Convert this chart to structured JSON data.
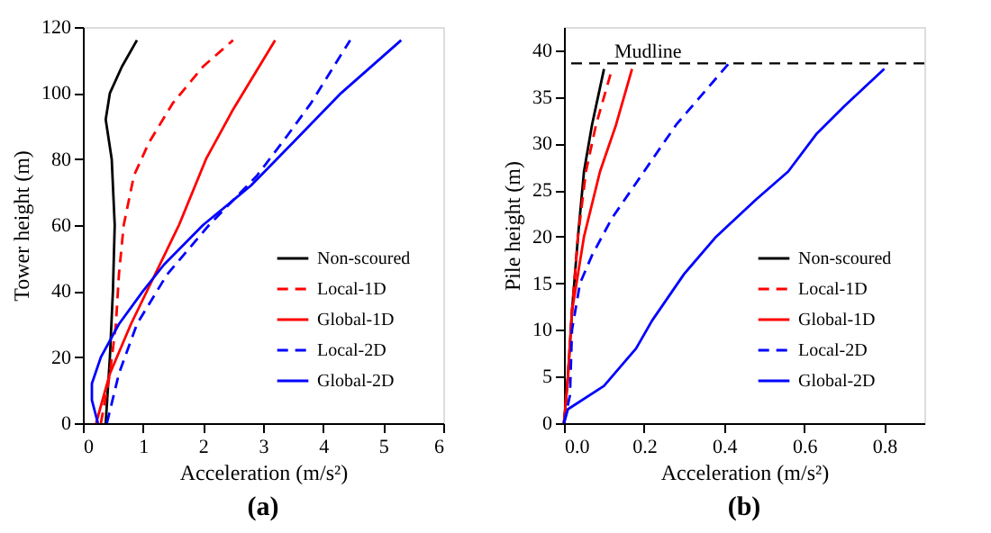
{
  "chart_data": [
    {
      "type": "line",
      "title": "(a)",
      "xlabel": "Acceleration (m/s²)",
      "ylabel": "Tower height (m)",
      "xlim": [
        0,
        6
      ],
      "xticks": [
        0,
        1,
        2,
        3,
        4,
        5,
        6
      ],
      "ylim": [
        0,
        120
      ],
      "yticks": [
        0,
        20,
        40,
        60,
        80,
        100,
        120
      ],
      "grid": false,
      "legend": "bottom right",
      "series": [
        {
          "name": "Non-scoured",
          "color": "#000000",
          "line_style": "solid",
          "x": [
            0.38,
            0.45,
            0.5,
            0.53,
            0.48,
            0.38,
            0.45,
            0.65,
            0.9
          ],
          "values": [
            0,
            20,
            40,
            60,
            80,
            92,
            100,
            108,
            116
          ]
        },
        {
          "name": "Local-1D",
          "color": "#ff0000",
          "line_style": "dashed",
          "x": [
            0.3,
            0.45,
            0.55,
            0.6,
            0.68,
            0.85,
            1.1,
            1.5,
            2.0,
            2.5
          ],
          "values": [
            0,
            15,
            30,
            45,
            60,
            75,
            85,
            97,
            108,
            116
          ]
        },
        {
          "name": "Global-1D",
          "color": "#ff0000",
          "line_style": "solid",
          "x": [
            0.22,
            0.45,
            0.8,
            1.2,
            1.6,
            2.05,
            2.5,
            3.2
          ],
          "values": [
            0,
            15,
            30,
            45,
            60,
            80,
            95,
            116
          ]
        },
        {
          "name": "Local-2D",
          "color": "#0000ff",
          "line_style": "dashed",
          "x": [
            0.4,
            0.6,
            0.9,
            1.4,
            2.1,
            2.9,
            3.4,
            3.8,
            4.45
          ],
          "values": [
            0,
            15,
            30,
            45,
            60,
            75,
            87,
            97,
            116
          ]
        },
        {
          "name": "Global-2D",
          "color": "#0000ff",
          "line_style": "solid",
          "x": [
            0.25,
            0.15,
            0.15,
            0.3,
            0.6,
            1.0,
            1.35,
            2.0,
            2.8,
            3.5,
            4.3,
            5.3
          ],
          "values": [
            0,
            7,
            12,
            20,
            30,
            40,
            48,
            60,
            72,
            85,
            100,
            116
          ]
        }
      ]
    },
    {
      "type": "line",
      "title": "(b)",
      "xlabel": "Acceleration (m/s²)",
      "ylabel": "Pile height (m)",
      "xlim": [
        0,
        0.9
      ],
      "xticks": [
        {
          "value": 0,
          "label": "0.0"
        },
        0.2,
        0.4,
        0.6,
        0.8
      ],
      "ylim": [
        0,
        42.5
      ],
      "yticks": [
        0,
        5,
        10,
        15,
        20,
        25,
        30,
        35,
        40
      ],
      "grid": false,
      "legend": "bottom right",
      "ref_lines": [
        {
          "axis": "y",
          "value": 38.6,
          "label": "Mudline",
          "color": "#000000",
          "line_style": "dashed"
        }
      ],
      "series": [
        {
          "name": "Non-scoured",
          "color": "#000000",
          "line_style": "solid",
          "x": [
            0,
            0.01,
            0.02,
            0.035,
            0.05,
            0.07,
            0.1
          ],
          "values": [
            0,
            5,
            12,
            20,
            27,
            32,
            38
          ]
        },
        {
          "name": "Local-1D",
          "color": "#ff0000",
          "line_style": "dashed",
          "x": [
            0,
            0.01,
            0.02,
            0.035,
            0.055,
            0.08,
            0.12
          ],
          "values": [
            0,
            5,
            12,
            20,
            27,
            32,
            38
          ]
        },
        {
          "name": "Global-1D",
          "color": "#ff0000",
          "line_style": "solid",
          "x": [
            0,
            0.01,
            0.02,
            0.05,
            0.09,
            0.13,
            0.17
          ],
          "values": [
            0,
            5,
            12,
            20,
            27,
            32,
            38
          ]
        },
        {
          "name": "Local-2D",
          "color": "#0000ff",
          "line_style": "dashed",
          "x": [
            0,
            0.015,
            0.02,
            0.04,
            0.07,
            0.12,
            0.2,
            0.28,
            0.34,
            0.41
          ],
          "values": [
            0,
            3,
            10,
            15,
            18,
            22,
            27,
            32,
            35,
            38.5
          ]
        },
        {
          "name": "Global-2D",
          "color": "#0000ff",
          "line_style": "solid",
          "x": [
            0,
            0.01,
            0.1,
            0.15,
            0.18,
            0.22,
            0.3,
            0.38,
            0.48,
            0.56,
            0.63,
            0.7,
            0.8
          ],
          "values": [
            0,
            1.5,
            4,
            6.5,
            8,
            11,
            16,
            20,
            24,
            27,
            31,
            34,
            38
          ]
        }
      ]
    }
  ]
}
